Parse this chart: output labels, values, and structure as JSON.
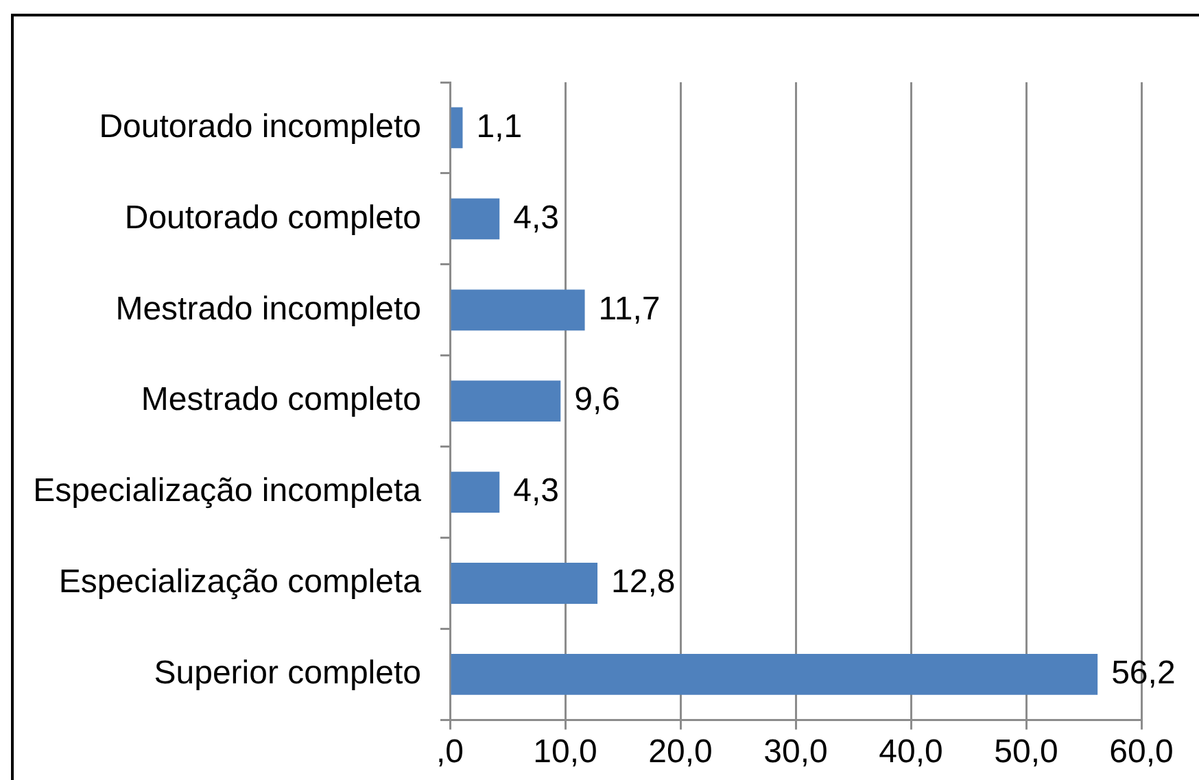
{
  "chart_data": {
    "type": "bar",
    "orientation": "horizontal",
    "categories": [
      "Doutorado incompleto",
      "Doutorado completo",
      "Mestrado incompleto",
      "Mestrado completo",
      "Especialização incompleta",
      "Especialização completa",
      "Superior completo"
    ],
    "values": [
      1.1,
      4.3,
      11.7,
      9.6,
      4.3,
      12.8,
      56.2
    ],
    "value_labels": [
      "1,1",
      "4,3",
      "11,7",
      "9,6",
      "4,3",
      "12,8",
      "56,2"
    ],
    "color": "#4f81bd",
    "xlim": [
      0,
      60
    ],
    "xticks": [
      {
        "value": 0,
        "label": ",0"
      },
      {
        "value": 10,
        "label": "10,0"
      },
      {
        "value": 20,
        "label": "20,0"
      },
      {
        "value": 30,
        "label": "30,0"
      },
      {
        "value": 40,
        "label": "40,0"
      },
      {
        "value": 50,
        "label": "50,0"
      },
      {
        "value": 60,
        "label": "60,0"
      }
    ],
    "grid": "x",
    "legend": false
  }
}
